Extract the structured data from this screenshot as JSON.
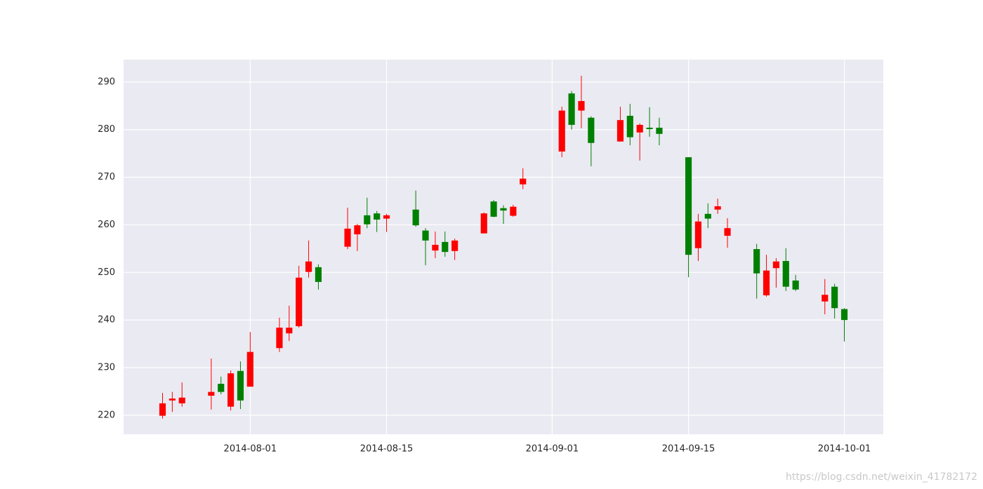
{
  "chart_data": {
    "type": "candlestick",
    "x": [
      "2014-07-23",
      "2014-07-24",
      "2014-07-25",
      "2014-07-28",
      "2014-07-29",
      "2014-07-30",
      "2014-07-31",
      "2014-08-01",
      "2014-08-04",
      "2014-08-05",
      "2014-08-06",
      "2014-08-07",
      "2014-08-08",
      "2014-08-11",
      "2014-08-12",
      "2014-08-13",
      "2014-08-14",
      "2014-08-15",
      "2014-08-18",
      "2014-08-19",
      "2014-08-20",
      "2014-08-21",
      "2014-08-22",
      "2014-08-25",
      "2014-08-26",
      "2014-08-27",
      "2014-08-28",
      "2014-08-29",
      "2014-09-02",
      "2014-09-03",
      "2014-09-04",
      "2014-09-05",
      "2014-09-08",
      "2014-09-09",
      "2014-09-10",
      "2014-09-11",
      "2014-09-12",
      "2014-09-15",
      "2014-09-16",
      "2014-09-17",
      "2014-09-18",
      "2014-09-19",
      "2014-09-22",
      "2014-09-23",
      "2014-09-24",
      "2014-09-25",
      "2014-09-26",
      "2014-09-29",
      "2014-09-30",
      "2014-10-01"
    ],
    "open": [
      219.9,
      223.1,
      222.5,
      224.1,
      226.6,
      221.8,
      229.3,
      226.0,
      234.1,
      237.2,
      238.7,
      250.1,
      251.1,
      255.4,
      258.0,
      262.0,
      262.4,
      261.3,
      263.2,
      258.8,
      254.6,
      256.4,
      254.5,
      258.2,
      264.9,
      263.5,
      261.9,
      268.5,
      275.4,
      287.6,
      284.0,
      282.5,
      277.5,
      282.9,
      279.4,
      280.4,
      280.4,
      274.2,
      255.1,
      262.3,
      263.2,
      257.7,
      254.9,
      245.2,
      250.9,
      252.4,
      248.3,
      243.9,
      247.0,
      242.3
    ],
    "high": [
      224.7,
      224.9,
      226.9,
      231.9,
      228.1,
      229.4,
      231.3,
      237.5,
      240.5,
      243.0,
      251.4,
      256.7,
      251.7,
      263.6,
      260.2,
      265.7,
      262.9,
      262.3,
      267.2,
      259.3,
      258.6,
      258.6,
      257.1,
      262.6,
      265.2,
      264.1,
      264.2,
      271.9,
      284.8,
      288.1,
      291.3,
      282.8,
      284.8,
      285.4,
      281.3,
      284.7,
      282.5,
      274.2,
      262.3,
      264.5,
      265.5,
      261.4,
      256.0,
      253.7,
      253.0,
      255.1,
      249.5,
      248.6,
      247.6,
      242.5
    ],
    "low": [
      219.3,
      220.7,
      221.8,
      221.2,
      224.4,
      221.0,
      221.3,
      226.0,
      233.3,
      235.6,
      238.4,
      248.9,
      246.4,
      254.9,
      254.5,
      259.3,
      258.5,
      258.5,
      259.6,
      251.5,
      253.0,
      253.3,
      252.6,
      258.2,
      261.6,
      260.2,
      261.7,
      267.5,
      274.2,
      280.0,
      280.3,
      272.3,
      277.5,
      276.7,
      273.5,
      278.5,
      276.7,
      249.0,
      252.4,
      259.3,
      262.3,
      255.2,
      244.5,
      244.9,
      246.8,
      246.1,
      246.1,
      241.2,
      240.3,
      235.5
    ],
    "close": [
      222.5,
      223.5,
      223.7,
      224.9,
      224.9,
      228.8,
      223.1,
      233.3,
      238.4,
      238.4,
      248.9,
      252.3,
      248.0,
      259.2,
      259.9,
      260.1,
      261.1,
      262.0,
      259.9,
      256.7,
      255.8,
      254.3,
      256.7,
      262.4,
      261.7,
      263.0,
      263.8,
      269.7,
      284.0,
      281.0,
      286.0,
      277.2,
      282.0,
      278.4,
      281.0,
      280.1,
      279.1,
      253.7,
      260.7,
      261.3,
      263.9,
      259.3,
      249.8,
      250.4,
      252.3,
      247.0,
      246.4,
      245.3,
      242.5,
      240.0
    ],
    "up_color": "#ff0000",
    "down_color": "#008000",
    "xlim": [
      "2014-07-19",
      "2014-10-05"
    ],
    "xticks": [
      "2014-08-01",
      "2014-08-15",
      "2014-09-01",
      "2014-09-15",
      "2014-10-01"
    ],
    "ylim": [
      216.0,
      294.7
    ],
    "yticks": [
      220,
      230,
      240,
      250,
      260,
      270,
      280,
      290
    ],
    "grid": true,
    "background": "#eaeaf2"
  },
  "watermark": "https://blog.csdn.net/weixin_41782172"
}
